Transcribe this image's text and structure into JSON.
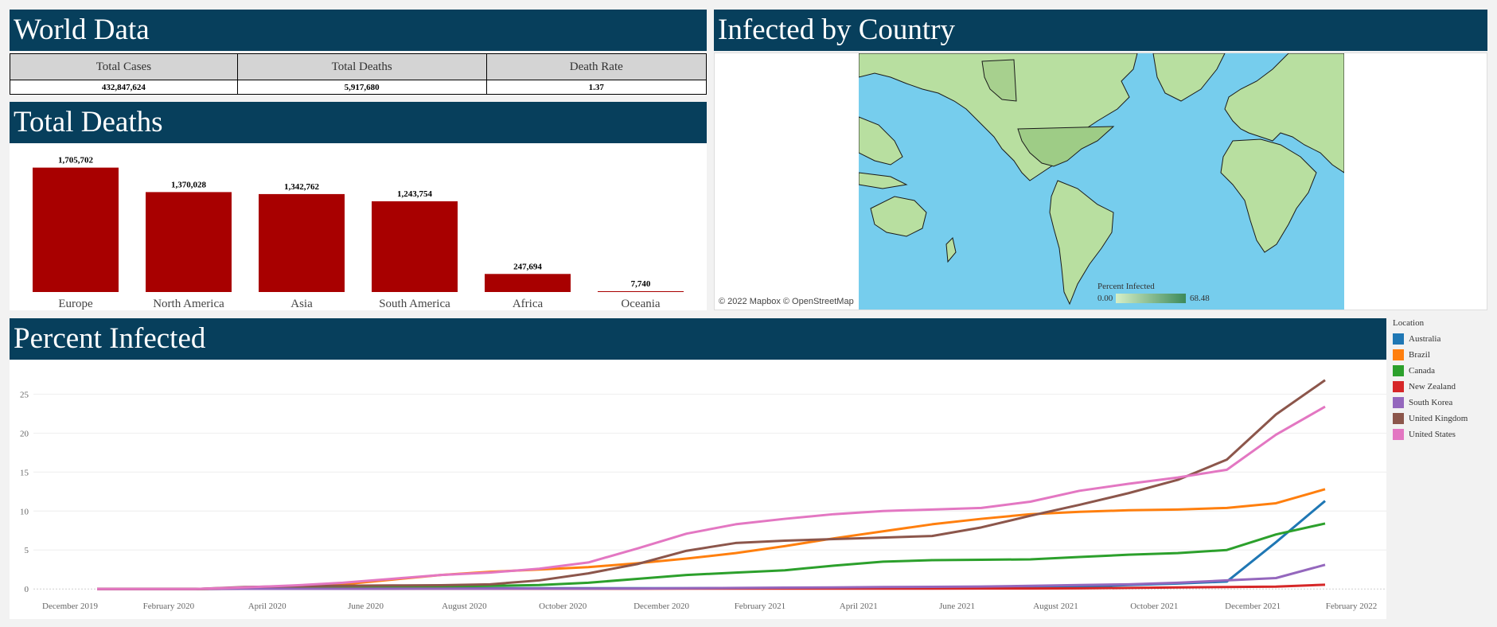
{
  "world_data": {
    "title": "World Data",
    "columns": [
      "Total Cases",
      "Total Deaths",
      "Death Rate"
    ],
    "values": [
      "432,847,624",
      "5,917,680",
      "1.37"
    ]
  },
  "total_deaths": {
    "title": "Total Deaths",
    "bar_color": "#a80000"
  },
  "infected_by_country": {
    "title": "Infected by Country",
    "credit": "© 2022 Mapbox © OpenStreetMap",
    "legend_title": "Percent Infected",
    "legend_min": "0.00",
    "legend_max": "68.48",
    "ocean_color": "#76cded",
    "land_color": "#b8dfa0"
  },
  "percent_infected": {
    "title": "Percent Infected"
  },
  "chart_data": [
    {
      "type": "bar",
      "title": "Total Deaths",
      "categories": [
        "Europe",
        "North America",
        "Asia",
        "South America",
        "Africa",
        "Oceania"
      ],
      "values": [
        1705702,
        1370028,
        1342762,
        1243754,
        247694,
        7740
      ],
      "data_labels": [
        "1,705,702",
        "1,370,028",
        "1,342,762",
        "1,243,754",
        "247,694",
        "7,740"
      ],
      "ylim": [
        0,
        1800000
      ]
    },
    {
      "type": "line",
      "title": "Percent Infected",
      "x_ticks": [
        "December 2019",
        "February 2020",
        "April 2020",
        "June 2020",
        "August 2020",
        "October 2020",
        "December 2020",
        "February 2021",
        "April 2021",
        "June 2021",
        "August 2021",
        "October 2021",
        "December 2021",
        "February 2022"
      ],
      "y_ticks": [
        0,
        5,
        10,
        15,
        20,
        25
      ],
      "ylim": [
        -1,
        28
      ],
      "x": [
        "2020-01",
        "2020-02",
        "2020-03",
        "2020-04",
        "2020-05",
        "2020-06",
        "2020-07",
        "2020-08",
        "2020-09",
        "2020-10",
        "2020-11",
        "2020-12",
        "2021-01",
        "2021-02",
        "2021-03",
        "2021-04",
        "2021-05",
        "2021-06",
        "2021-07",
        "2021-08",
        "2021-09",
        "2021-10",
        "2021-11",
        "2021-12",
        "2022-01",
        "2022-02"
      ],
      "legend_title": "Location",
      "series": [
        {
          "name": "Australia",
          "color": "#1f77b4",
          "values": [
            0,
            0,
            0,
            0.03,
            0.03,
            0.03,
            0.04,
            0.1,
            0.1,
            0.1,
            0.1,
            0.1,
            0.1,
            0.11,
            0.11,
            0.12,
            0.12,
            0.12,
            0.13,
            0.17,
            0.3,
            0.5,
            0.7,
            0.95,
            6.0,
            11.3
          ]
        },
        {
          "name": "Brazil",
          "color": "#ff7f0e",
          "values": [
            0,
            0,
            0,
            0.04,
            0.2,
            0.6,
            1.2,
            1.8,
            2.2,
            2.5,
            2.8,
            3.3,
            3.9,
            4.6,
            5.5,
            6.5,
            7.4,
            8.3,
            9.0,
            9.6,
            9.9,
            10.1,
            10.2,
            10.4,
            11.0,
            12.8
          ]
        },
        {
          "name": "Canada",
          "color": "#2ca02c",
          "values": [
            0,
            0,
            0,
            0.08,
            0.2,
            0.28,
            0.3,
            0.33,
            0.4,
            0.5,
            0.8,
            1.3,
            1.8,
            2.1,
            2.4,
            3.0,
            3.5,
            3.7,
            3.75,
            3.8,
            4.1,
            4.4,
            4.6,
            5.0,
            7.0,
            8.4
          ]
        },
        {
          "name": "New Zealand",
          "color": "#d62728",
          "values": [
            0,
            0,
            0,
            0.02,
            0.03,
            0.03,
            0.03,
            0.03,
            0.04,
            0.04,
            0.04,
            0.04,
            0.05,
            0.05,
            0.05,
            0.05,
            0.05,
            0.05,
            0.06,
            0.06,
            0.09,
            0.13,
            0.2,
            0.25,
            0.3,
            0.55
          ]
        },
        {
          "name": "South Korea",
          "color": "#9467bd",
          "values": [
            0,
            0,
            0,
            0.02,
            0.02,
            0.02,
            0.03,
            0.03,
            0.04,
            0.05,
            0.05,
            0.06,
            0.1,
            0.13,
            0.17,
            0.2,
            0.25,
            0.28,
            0.32,
            0.4,
            0.5,
            0.6,
            0.8,
            1.1,
            1.4,
            3.1
          ]
        },
        {
          "name": "United Kingdom",
          "color": "#8c564b",
          "values": [
            0,
            0,
            0,
            0.25,
            0.35,
            0.42,
            0.45,
            0.48,
            0.6,
            1.1,
            2.0,
            3.2,
            4.9,
            5.9,
            6.2,
            6.4,
            6.6,
            6.8,
            7.9,
            9.4,
            10.8,
            12.3,
            14.0,
            16.6,
            22.4,
            26.8
          ]
        },
        {
          "name": "United States",
          "color": "#e377c2",
          "values": [
            0,
            0,
            0,
            0.2,
            0.45,
            0.8,
            1.3,
            1.8,
            2.1,
            2.6,
            3.4,
            5.2,
            7.1,
            8.3,
            9.0,
            9.6,
            10.0,
            10.2,
            10.4,
            11.2,
            12.6,
            13.5,
            14.3,
            15.3,
            19.8,
            23.4
          ]
        }
      ]
    }
  ]
}
